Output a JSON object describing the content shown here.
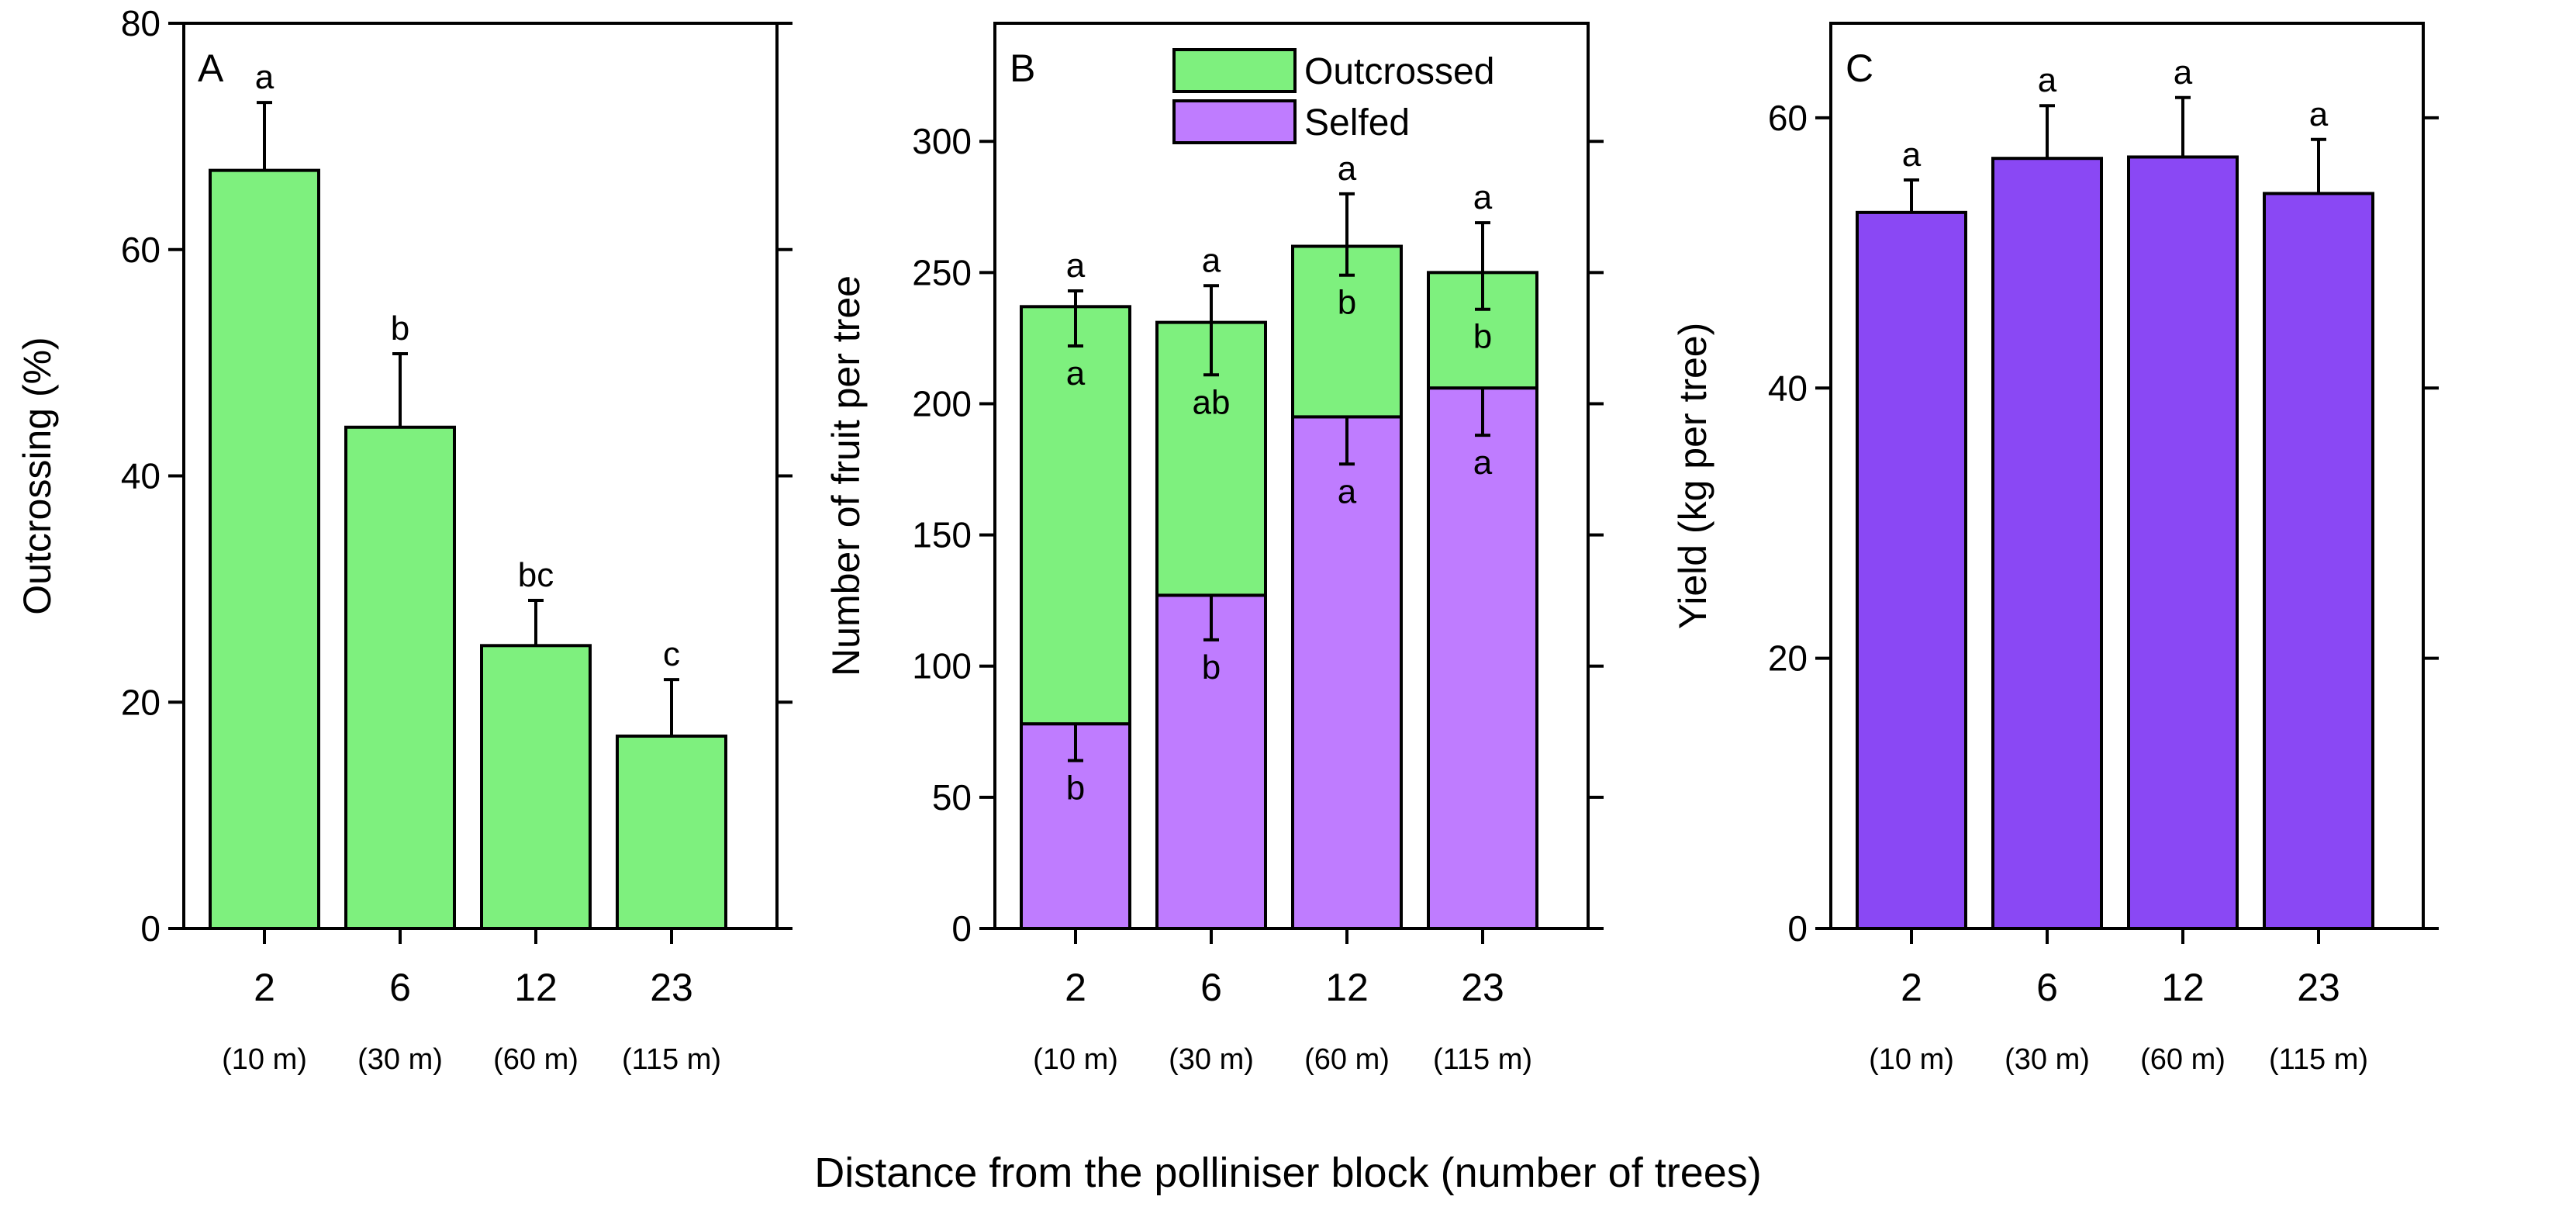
{
  "figure": {
    "x_title": "Distance from the polliniser block (number of trees)",
    "colors": {
      "outcrossed": "#7ef07e",
      "selfed": "#bf7cff",
      "yield": "#8a48f4",
      "stroke": "#000000"
    }
  },
  "chart_data": [
    {
      "id": "A",
      "type": "bar",
      "panel_letter": "A",
      "ylabel": "Outcrossing (%)",
      "ylim": [
        0,
        80
      ],
      "yticks": [
        0,
        20,
        40,
        60,
        80
      ],
      "categories": [
        "2",
        "6",
        "12",
        "23"
      ],
      "category_sublabels": [
        "(10 m)",
        "(30 m)",
        "(60 m)",
        "(115 m)"
      ],
      "series": [
        {
          "name": "Outcrossing",
          "color_key": "outcrossed",
          "values": [
            67,
            44.3,
            25,
            17
          ],
          "errors": [
            6,
            6.5,
            4,
            5
          ],
          "letters": [
            "a",
            "b",
            "bc",
            "c"
          ]
        }
      ]
    },
    {
      "id": "B",
      "type": "stacked-bar",
      "panel_letter": "B",
      "ylabel": "Number of fruit per tree",
      "ylim": [
        0,
        345
      ],
      "yticks": [
        0,
        50,
        100,
        150,
        200,
        250,
        300
      ],
      "categories": [
        "2",
        "6",
        "12",
        "23"
      ],
      "category_sublabels": [
        "(10 m)",
        "(30 m)",
        "(60 m)",
        "(115 m)"
      ],
      "legend": [
        "Outcrossed",
        "Selfed"
      ],
      "series": [
        {
          "name": "Selfed",
          "color_key": "selfed",
          "values": [
            78,
            127,
            195,
            206
          ],
          "errors_down": [
            14,
            17,
            18,
            18
          ],
          "letters": [
            "b",
            "b",
            "a",
            "a"
          ]
        },
        {
          "name": "Outcrossed",
          "color_key": "outcrossed",
          "values": [
            159,
            104,
            65,
            44
          ],
          "errors_down": [
            15,
            20,
            11,
            14
          ],
          "letters": [
            "a",
            "ab",
            "b",
            "b"
          ]
        }
      ],
      "totals": {
        "values": [
          237,
          231,
          260,
          250
        ],
        "errors_up": [
          6,
          14,
          20,
          19
        ],
        "letters": [
          "a",
          "a",
          "a",
          "a"
        ]
      }
    },
    {
      "id": "C",
      "type": "bar",
      "panel_letter": "C",
      "ylabel": "Yield (kg per tree)",
      "ylim": [
        0,
        67
      ],
      "yticks": [
        0,
        20,
        40,
        60
      ],
      "categories": [
        "2",
        "6",
        "12",
        "23"
      ],
      "category_sublabels": [
        "(10 m)",
        "(30 m)",
        "(60 m)",
        "(115 m)"
      ],
      "series": [
        {
          "name": "Yield",
          "color_key": "yield",
          "values": [
            53,
            57,
            57.1,
            54.4
          ],
          "errors": [
            2.4,
            3.9,
            4.4,
            4
          ],
          "letters": [
            "a",
            "a",
            "a",
            "a"
          ]
        }
      ]
    }
  ]
}
